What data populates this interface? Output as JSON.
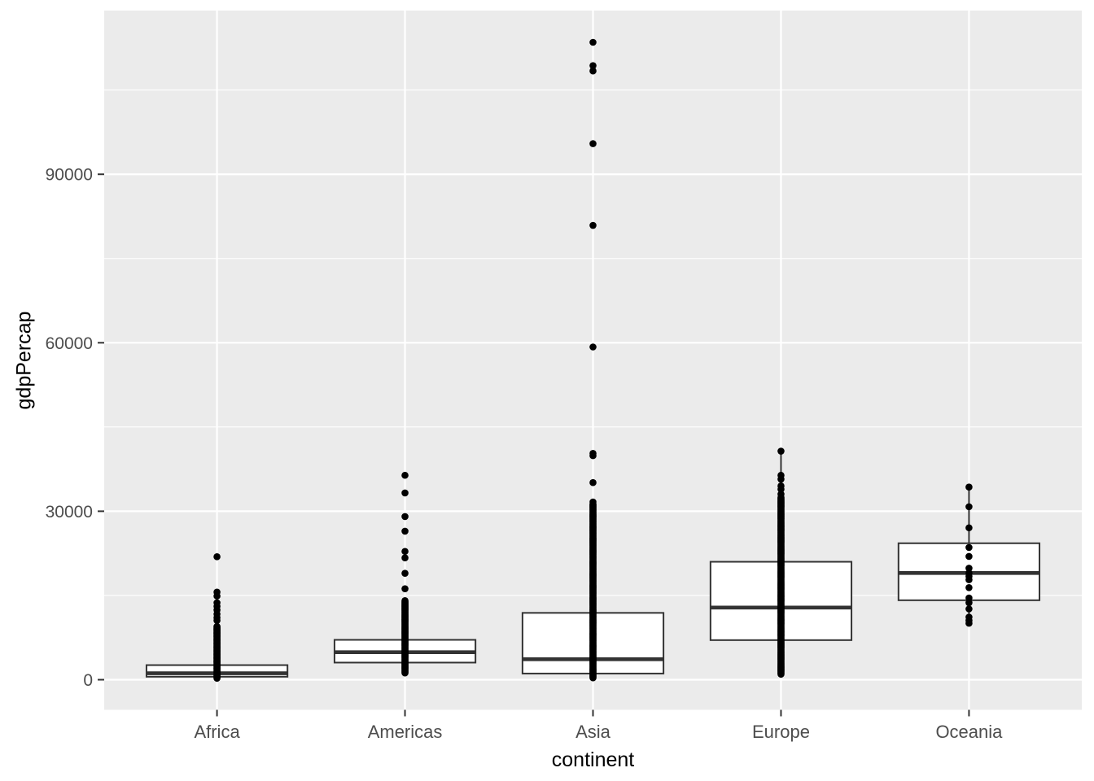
{
  "figure": {
    "kind": "ggplot-style boxplot with overplotted raw points",
    "background": "#FFFFFF"
  },
  "panel": {
    "background": "#EBEBEB",
    "grid_major_color": "#FFFFFF",
    "grid_minor_color": "#FFFFFF",
    "tick_color": "#333333",
    "tick_label_color": "#4D4D4D",
    "title_color": "#000000"
  },
  "axes": {
    "x": {
      "title": "continent",
      "categories": [
        "Africa",
        "Americas",
        "Asia",
        "Europe",
        "Oceania"
      ]
    },
    "y": {
      "title": "gdpPercap",
      "tick_values": [
        0,
        30000,
        60000,
        90000
      ],
      "tick_labels": [
        "0",
        "30000",
        "60000",
        "90000"
      ],
      "minor_tick_values": [
        15000,
        45000,
        75000,
        105000
      ],
      "range": [
        -5360,
        119150
      ]
    }
  },
  "chart_data": {
    "type": "boxplot",
    "overlay": "all raw data points drawn as black dots on category center line",
    "title": "",
    "xlabel": "continent",
    "ylabel": "gdpPercap",
    "ylim": [
      -5360,
      119150
    ],
    "grid": "major and minor horizontal white lines, major vertical white line per category",
    "categories": [
      "Africa",
      "Americas",
      "Asia",
      "Europe",
      "Oceania"
    ],
    "series": [
      {
        "name": "Africa",
        "box": {
          "lower_whisker": 240,
          "q1": 535,
          "median": 1150,
          "q3": 2600,
          "upper_whisker": 5100
        },
        "discrete_points": [
          21900,
          15600,
          14900,
          13700,
          13050,
          12400,
          11700,
          11050,
          10550
        ],
        "dense_column": {
          "min": 260,
          "max": 9550,
          "step": 130
        }
      },
      {
        "name": "Americas",
        "box": {
          "lower_whisker": 1200,
          "q1": 3050,
          "median": 4900,
          "q3": 7100,
          "upper_whisker": 14200
        },
        "discrete_points": [
          36400,
          33250,
          29050,
          26450,
          22850,
          21700,
          18950,
          16200
        ],
        "dense_column": {
          "min": 1200,
          "max": 14200,
          "step": 140
        }
      },
      {
        "name": "Asia",
        "box": {
          "lower_whisker": 330,
          "q1": 1100,
          "median": 3650,
          "q3": 11900,
          "upper_whisker": 28000
        },
        "discrete_points": [
          113500,
          109350,
          108400,
          95450,
          80900,
          59250,
          40300,
          39900,
          35100,
          31650
        ],
        "dense_column": {
          "min": 330,
          "max": 31300,
          "step": 150
        }
      },
      {
        "name": "Europe",
        "box": {
          "lower_whisker": 975,
          "q1": 7050,
          "median": 12850,
          "q3": 21000,
          "upper_whisker": 40400
        },
        "discrete_points": [
          40700,
          36400,
          35700,
          34500,
          33900,
          33050
        ],
        "dense_column": {
          "min": 975,
          "max": 32600,
          "step": 140
        }
      },
      {
        "name": "Oceania",
        "box": {
          "lower_whisker": 10050,
          "q1": 14150,
          "median": 19000,
          "q3": 24300,
          "upper_whisker": 34300
        },
        "discrete_points": [
          34300,
          30800,
          27050,
          23550,
          21950,
          19850,
          19000,
          18400,
          17800,
          16400,
          14550,
          13700,
          12600,
          11150,
          10550,
          10050
        ],
        "dense_column": null
      }
    ],
    "style": {
      "box_fill": "#FFFFFF",
      "box_stroke": "#333333",
      "median_stroke": "#333333",
      "whisker_stroke": "#333333",
      "point_color": "#000000",
      "point_radius_px": 4.3
    }
  }
}
